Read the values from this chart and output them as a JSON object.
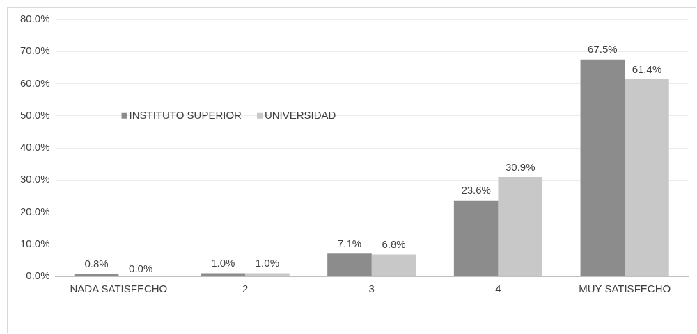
{
  "chart_data": {
    "type": "bar",
    "categories": [
      "NADA SATISFECHO",
      "2",
      "3",
      "4",
      "MUY SATISFECHO"
    ],
    "series": [
      {
        "name": "INSTITUTO SUPERIOR",
        "color": "#8c8c8c",
        "values": [
          0.8,
          1.0,
          7.1,
          23.6,
          67.5
        ],
        "value_labels": [
          "0.8%",
          "1.0%",
          "7.1%",
          "23.6%",
          "67.5%"
        ]
      },
      {
        "name": "UNIVERSIDAD",
        "color": "#c8c8c8",
        "values": [
          0.0,
          1.0,
          6.8,
          30.9,
          61.4
        ],
        "value_labels": [
          "0.0%",
          "1.0%",
          "6.8%",
          "30.9%",
          "61.4%"
        ]
      }
    ],
    "ylim": [
      0,
      80
    ],
    "yticks": [
      {
        "value": 0,
        "label": "0.0%"
      },
      {
        "value": 10,
        "label": "10.0%"
      },
      {
        "value": 20,
        "label": "20.0%"
      },
      {
        "value": 30,
        "label": "30.0%"
      },
      {
        "value": 40,
        "label": "40.0%"
      },
      {
        "value": 50,
        "label": "50.0%"
      },
      {
        "value": 60,
        "label": "60.0%"
      },
      {
        "value": 70,
        "label": "70.0%"
      },
      {
        "value": 80,
        "label": "80.0%"
      }
    ],
    "grid": "y",
    "legend": "left"
  }
}
